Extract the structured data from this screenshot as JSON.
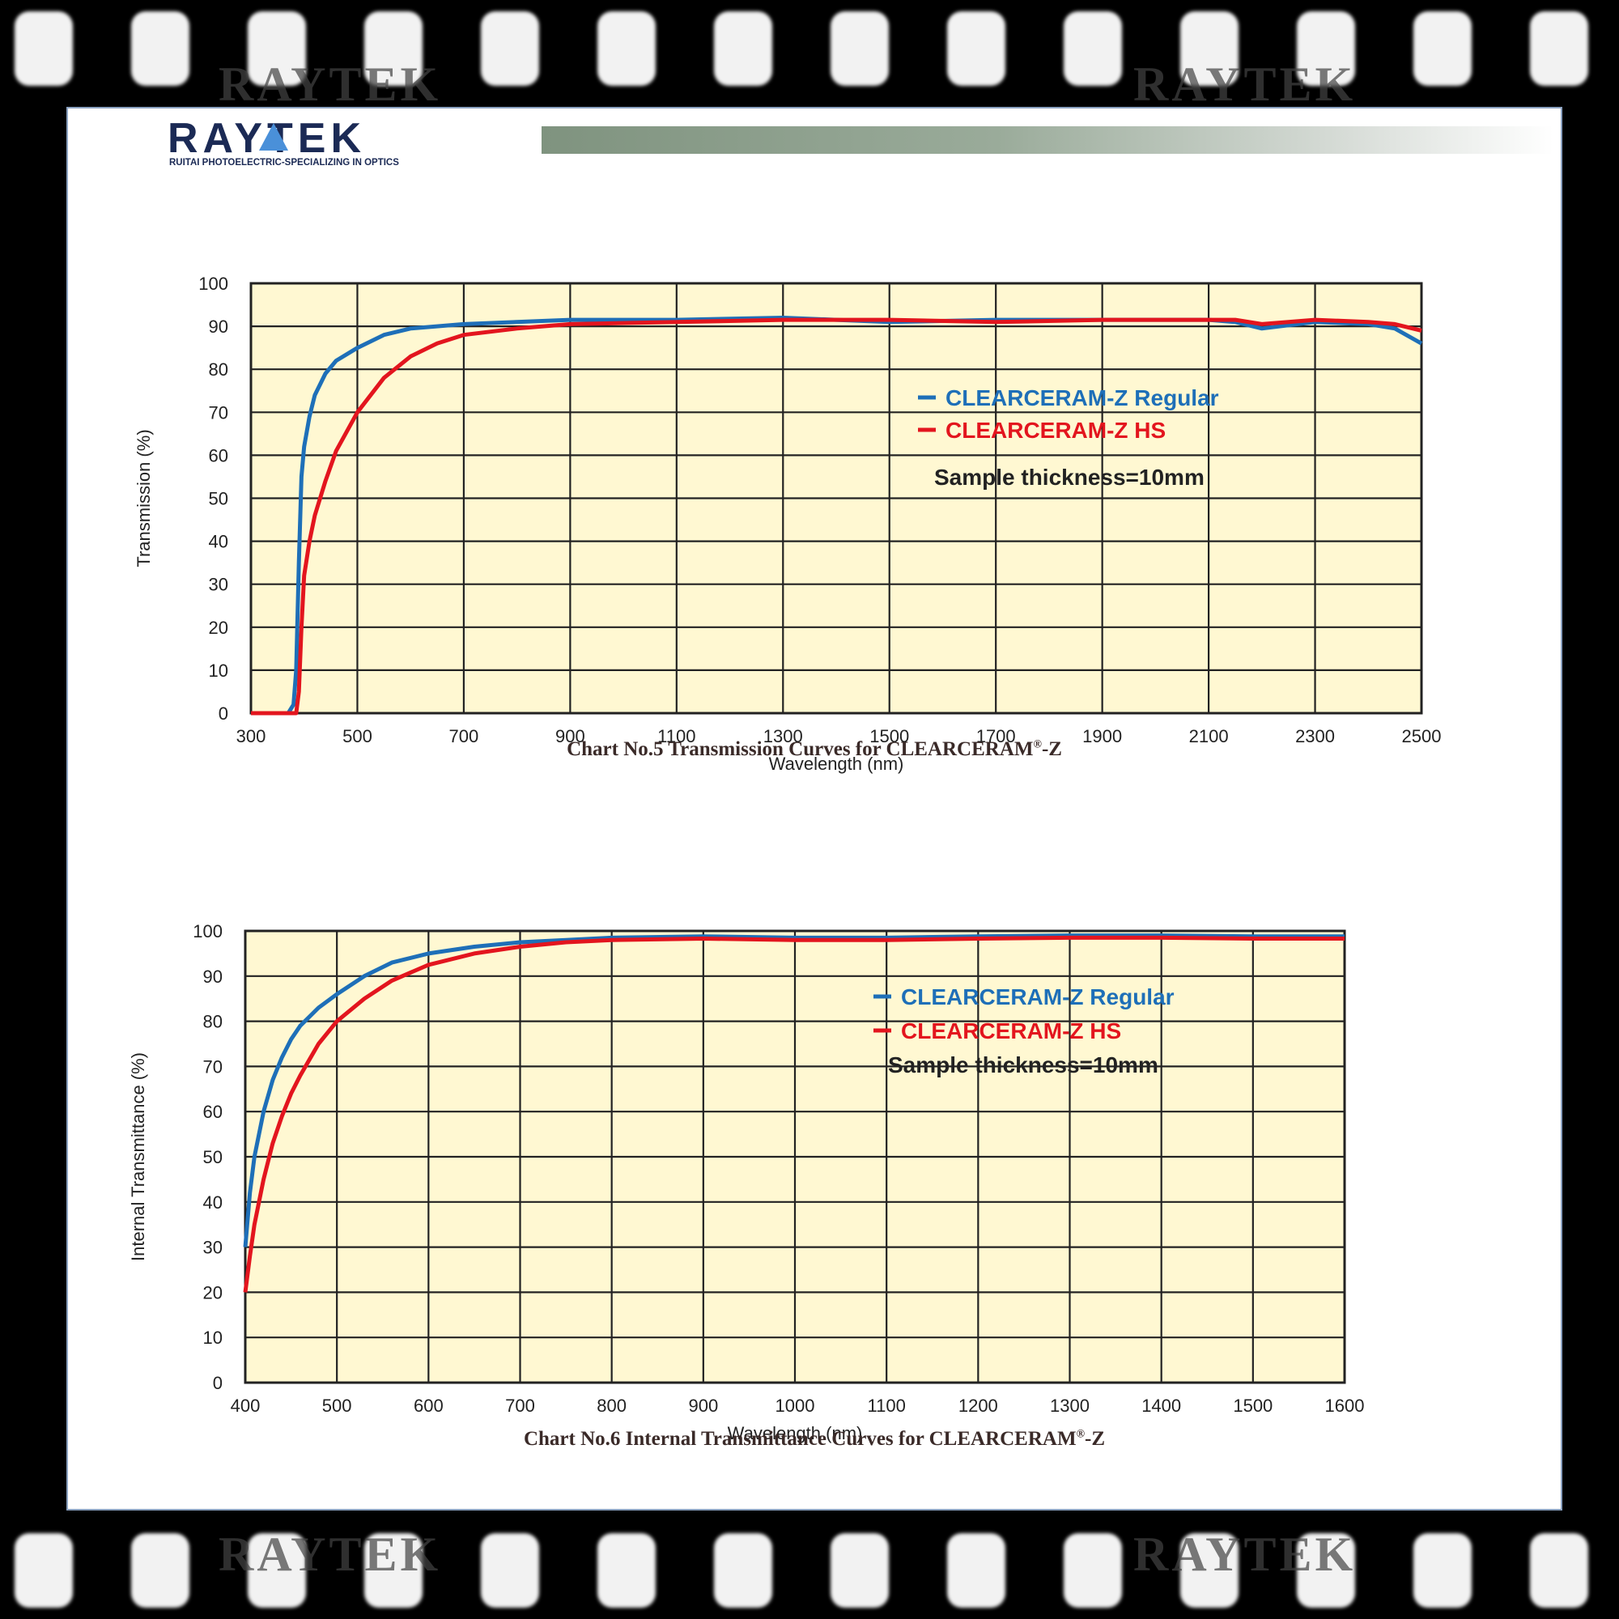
{
  "brand": {
    "name": "RAYTEK",
    "tagline": "RUITAI PHOTOELECTRIC-SPECIALIZING IN OPTICS",
    "colors": {
      "navy": "#1b2a55",
      "accent": "#4a90d9",
      "band": "#8a9c8a"
    }
  },
  "film_ghost_text": "RAYTEK",
  "chart_data": [
    {
      "type": "line",
      "caption": {
        "prefix": "Chart No.5  Transmission Curves for CLEARCERAM",
        "mark": "®",
        "suffix": "-Z"
      },
      "xlabel": "Wavelength (nm)",
      "ylabel": "Transmission (%)",
      "xlim": [
        300,
        2500
      ],
      "ylim": [
        0,
        100
      ],
      "xticks": [
        300,
        500,
        700,
        900,
        1100,
        1300,
        1500,
        1700,
        1900,
        2100,
        2300,
        2500
      ],
      "yticks": [
        0,
        10,
        20,
        30,
        40,
        50,
        60,
        70,
        80,
        90,
        100
      ],
      "grid": true,
      "annotation": "Sample thickness=10mm",
      "series": [
        {
          "name": "CLEARCERAM-Z Regular",
          "color": "#1e6fb8",
          "x": [
            300,
            370,
            380,
            385,
            390,
            395,
            400,
            410,
            420,
            440,
            460,
            500,
            550,
            600,
            700,
            900,
            1100,
            1300,
            1400,
            1500,
            1700,
            1900,
            2100,
            2150,
            2200,
            2300,
            2400,
            2450,
            2500
          ],
          "y": [
            0,
            0,
            2,
            10,
            35,
            55,
            62,
            69,
            74,
            79,
            82,
            85,
            88,
            89.5,
            90.5,
            91.5,
            91.5,
            92,
            91.5,
            91,
            91.5,
            91.5,
            91.5,
            91,
            89.5,
            91,
            90.5,
            89.5,
            86
          ]
        },
        {
          "name": "CLEARCERAM-Z HS",
          "color": "#e3151e",
          "x": [
            300,
            385,
            390,
            395,
            400,
            410,
            420,
            440,
            460,
            500,
            550,
            600,
            650,
            700,
            800,
            900,
            1100,
            1300,
            1500,
            1700,
            1900,
            2100,
            2150,
            2200,
            2300,
            2400,
            2450,
            2500
          ],
          "y": [
            0,
            0,
            5,
            20,
            32,
            40,
            46,
            54,
            61,
            70,
            78,
            83,
            86,
            88,
            89.5,
            90.5,
            91,
            91.5,
            91.5,
            91,
            91.5,
            91.5,
            91.5,
            90.5,
            91.5,
            91,
            90.5,
            89
          ]
        }
      ]
    },
    {
      "type": "line",
      "caption": {
        "prefix": "Chart No.6  Internal Transmittance Curves for CLEARCERAM",
        "mark": "®",
        "suffix": "-Z"
      },
      "xlabel": "Wavelength (nm)",
      "ylabel": "Internal Transmittance (%)",
      "xlim": [
        400,
        1600
      ],
      "ylim": [
        0,
        100
      ],
      "xticks": [
        400,
        500,
        600,
        700,
        800,
        900,
        1000,
        1100,
        1200,
        1300,
        1400,
        1500,
        1600
      ],
      "yticks": [
        0,
        10,
        20,
        30,
        40,
        50,
        60,
        70,
        80,
        90,
        100
      ],
      "grid": true,
      "annotation": "Sample thickness=10mm",
      "series": [
        {
          "name": "CLEARCERAM-Z Regular",
          "color": "#1e6fb8",
          "x": [
            400,
            405,
            410,
            420,
            430,
            440,
            450,
            460,
            480,
            500,
            530,
            560,
            600,
            650,
            700,
            750,
            800,
            900,
            1000,
            1100,
            1200,
            1300,
            1400,
            1500,
            1600
          ],
          "y": [
            30,
            42,
            50,
            60,
            67,
            72,
            76,
            79,
            83,
            86,
            90,
            93,
            95,
            96.5,
            97.5,
            98,
            98.5,
            98.8,
            98.5,
            98.5,
            98.8,
            99,
            99,
            98.8,
            98.8
          ]
        },
        {
          "name": "CLEARCERAM-Z HS",
          "color": "#e3151e",
          "x": [
            400,
            405,
            410,
            420,
            430,
            440,
            450,
            460,
            480,
            500,
            530,
            560,
            600,
            650,
            700,
            750,
            800,
            900,
            1000,
            1100,
            1200,
            1300,
            1400,
            1500,
            1600
          ],
          "y": [
            20,
            28,
            35,
            45,
            53,
            59,
            64,
            68,
            75,
            80,
            85,
            89,
            92.5,
            95,
            96.5,
            97.5,
            98,
            98.3,
            98,
            98,
            98.3,
            98.5,
            98.5,
            98.3,
            98.3
          ]
        }
      ]
    }
  ]
}
